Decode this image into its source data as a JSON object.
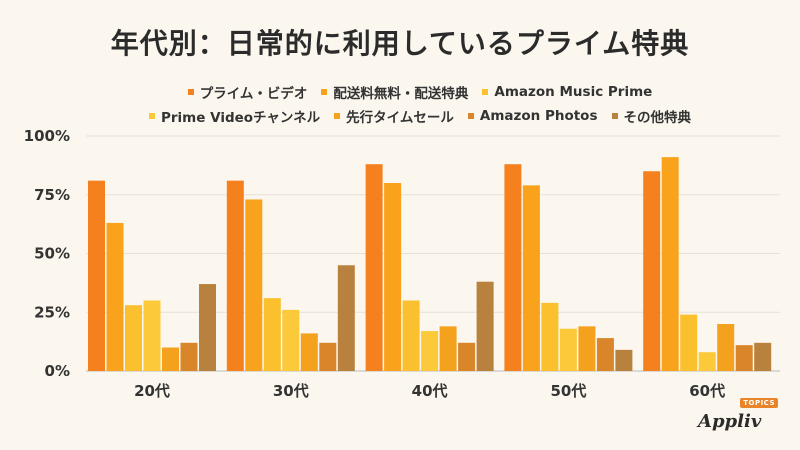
{
  "chart_data": {
    "type": "bar",
    "title": "年代別：日常的に利用しているプライム特典",
    "categories": [
      "20代",
      "30代",
      "40代",
      "50代",
      "60代"
    ],
    "ylim": [
      0,
      100
    ],
    "yticks": [
      0,
      25,
      50,
      75,
      100
    ],
    "ytick_labels": [
      "0%",
      "25%",
      "50%",
      "75%",
      "100%"
    ],
    "xlabel": "",
    "ylabel": "",
    "grid": true,
    "legend_position": "top",
    "series": [
      {
        "name": "プライム・ビデオ",
        "color": "#f5801e",
        "values": [
          81,
          81,
          88,
          88,
          85
        ]
      },
      {
        "name": "配送料無料・配送特典",
        "color": "#f9a21b",
        "values": [
          63,
          73,
          80,
          79,
          91
        ]
      },
      {
        "name": "Amazon Music Prime",
        "color": "#fbc02d",
        "values": [
          28,
          31,
          30,
          29,
          24
        ]
      },
      {
        "name": "Prime Videoチャンネル",
        "color": "#fcc93a",
        "values": [
          30,
          26,
          17,
          18,
          8
        ]
      },
      {
        "name": "先行タイムセール",
        "color": "#f4a21e",
        "values": [
          10,
          16,
          19,
          19,
          20
        ]
      },
      {
        "name": "Amazon Photos",
        "color": "#d9862a",
        "values": [
          12,
          12,
          12,
          14,
          11
        ]
      },
      {
        "name": "その他特典",
        "color": "#b8823e",
        "values": [
          37,
          45,
          38,
          9,
          12
        ]
      }
    ]
  },
  "logo": {
    "text": "Appliv",
    "badge": "TOPICS"
  }
}
